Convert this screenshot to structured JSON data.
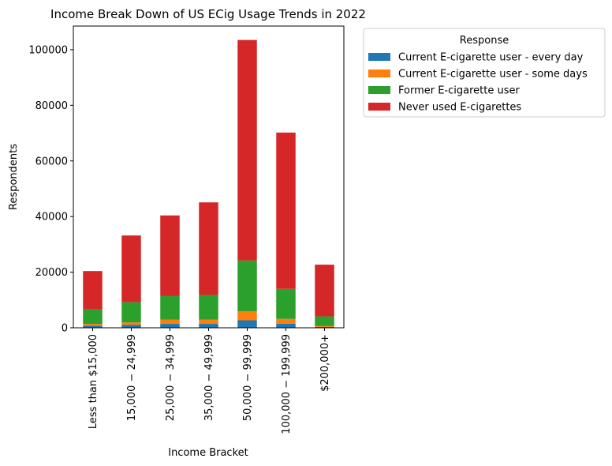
{
  "chart_data": {
    "type": "bar",
    "stacked": true,
    "title": "Income Break Down of US ECig Usage Trends in 2022",
    "xlabel": "Income Bracket",
    "ylabel": "Respondents",
    "ylim": [
      0,
      108500
    ],
    "yticks": [
      "0",
      "20000",
      "40000",
      "60000",
      "80000",
      "100000"
    ],
    "grid": false,
    "legend_position": "outside right",
    "categories": [
      "Less than $15,000",
      "15,000 − 24,999",
      "25,000 − 34,999",
      "35,000 − 49,999",
      "50,000 − 99,999",
      "100,000 − 199,999",
      "$200,000+"
    ],
    "legend_title": "Response",
    "series": [
      {
        "name": "Current E-cigarette user - every day",
        "color": "#1f77b4",
        "values": [
          700,
          1000,
          1400,
          1400,
          2700,
          1500,
          300
        ]
      },
      {
        "name": "Current E-cigarette user - some days",
        "color": "#ff7f0e",
        "values": [
          700,
          900,
          1500,
          1500,
          3200,
          1700,
          300
        ]
      },
      {
        "name": "Former E-cigarette user",
        "color": "#2ca02c",
        "values": [
          5200,
          7300,
          8600,
          8900,
          18300,
          10800,
          3500
        ]
      },
      {
        "name": "Never used E-cigarettes",
        "color": "#d62728",
        "values": [
          13800,
          24000,
          28900,
          33300,
          79300,
          56200,
          18600
        ]
      }
    ]
  }
}
